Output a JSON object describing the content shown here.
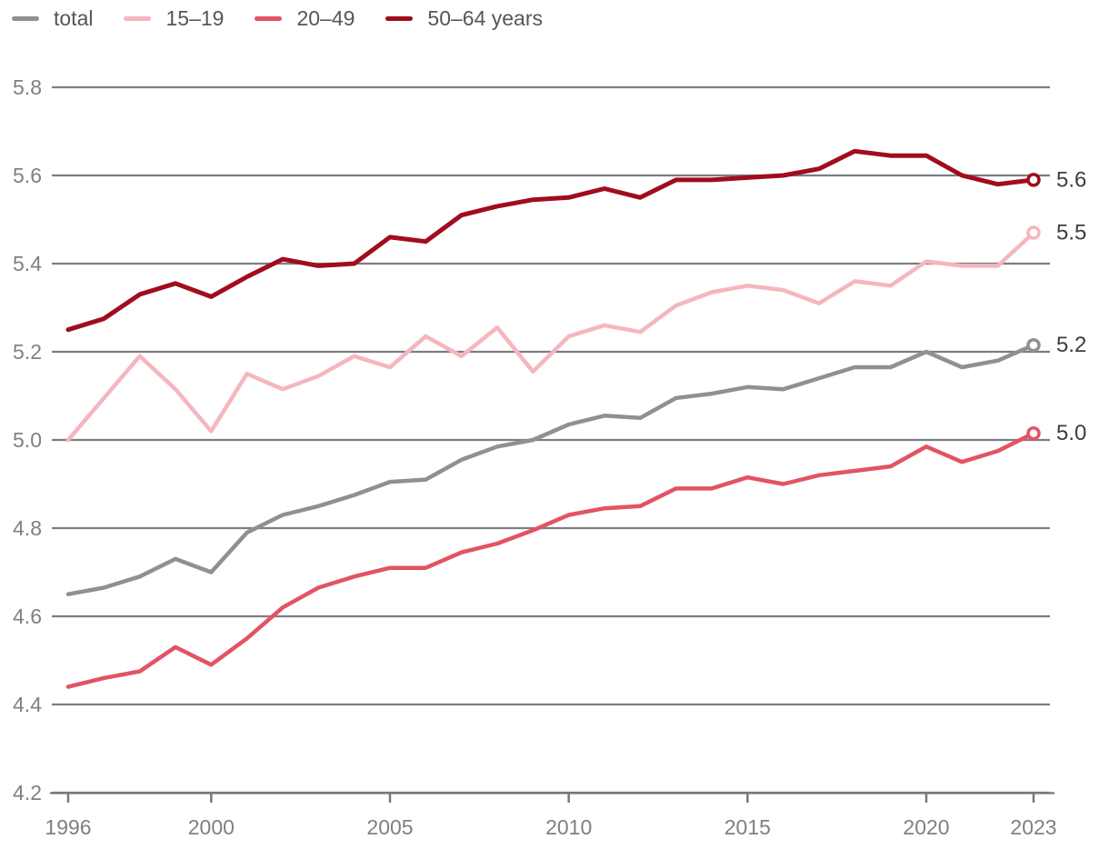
{
  "chart_data": {
    "type": "line",
    "x": [
      1996,
      1997,
      1998,
      1999,
      2000,
      2001,
      2002,
      2003,
      2004,
      2005,
      2006,
      2007,
      2008,
      2009,
      2010,
      2011,
      2012,
      2013,
      2014,
      2015,
      2016,
      2017,
      2018,
      2019,
      2020,
      2021,
      2022,
      2023
    ],
    "series": [
      {
        "name": "total",
        "color": "#8f9093",
        "end_label": "5.2",
        "values": [
          4.65,
          4.665,
          4.69,
          4.73,
          4.7,
          4.79,
          4.83,
          4.85,
          4.875,
          4.905,
          4.91,
          4.955,
          4.985,
          5.0,
          5.035,
          5.055,
          5.05,
          5.095,
          5.105,
          5.12,
          5.115,
          5.14,
          5.165,
          5.165,
          5.2,
          5.165,
          5.18,
          5.215
        ]
      },
      {
        "name": "15–19",
        "color": "#f5b6bd",
        "end_label": "5.5",
        "values": [
          5.0,
          5.095,
          5.19,
          5.115,
          5.02,
          5.15,
          5.115,
          5.145,
          5.19,
          5.165,
          5.235,
          5.19,
          5.255,
          5.155,
          5.235,
          5.26,
          5.245,
          5.305,
          5.335,
          5.35,
          5.34,
          5.31,
          5.36,
          5.35,
          5.405,
          5.395,
          5.395,
          5.47
        ]
      },
      {
        "name": "20–49",
        "color": "#e25364",
        "end_label": "5.0",
        "values": [
          4.44,
          4.46,
          4.475,
          4.53,
          4.49,
          4.55,
          4.62,
          4.665,
          4.69,
          4.71,
          4.71,
          4.745,
          4.765,
          4.795,
          4.83,
          4.845,
          4.85,
          4.89,
          4.89,
          4.915,
          4.9,
          4.92,
          4.93,
          4.94,
          4.985,
          4.95,
          4.975,
          5.015
        ]
      },
      {
        "name": "50–64 years",
        "color": "#a10c1e",
        "end_label": "5.6",
        "values": [
          5.25,
          5.275,
          5.33,
          5.355,
          5.325,
          5.37,
          5.41,
          5.395,
          5.4,
          5.46,
          5.45,
          5.51,
          5.53,
          5.545,
          5.55,
          5.57,
          5.55,
          5.59,
          5.59,
          5.595,
          5.6,
          5.615,
          5.655,
          5.645,
          5.645,
          5.6,
          5.58,
          5.59
        ]
      }
    ],
    "title": "",
    "xlabel": "",
    "ylabel": "",
    "xlim": [
      1996,
      2023
    ],
    "ylim": [
      4.2,
      5.8
    ],
    "y_ticks": [
      "5.8",
      "5.6",
      "5.4",
      "5.2",
      "5.0",
      "4.8",
      "4.6",
      "4.4",
      "4.2"
    ],
    "x_ticks": [
      "1996",
      "2000",
      "2005",
      "2010",
      "2015",
      "2020",
      "2023"
    ],
    "grid": "horizontal",
    "legend_position": "top-left"
  },
  "colors": {
    "background": "#ffffff",
    "gridline": "#7d7e81",
    "axis": "#77787a",
    "tick_label": "#808084",
    "end_label": "#3d3e42",
    "legend_label": "#55565b"
  }
}
